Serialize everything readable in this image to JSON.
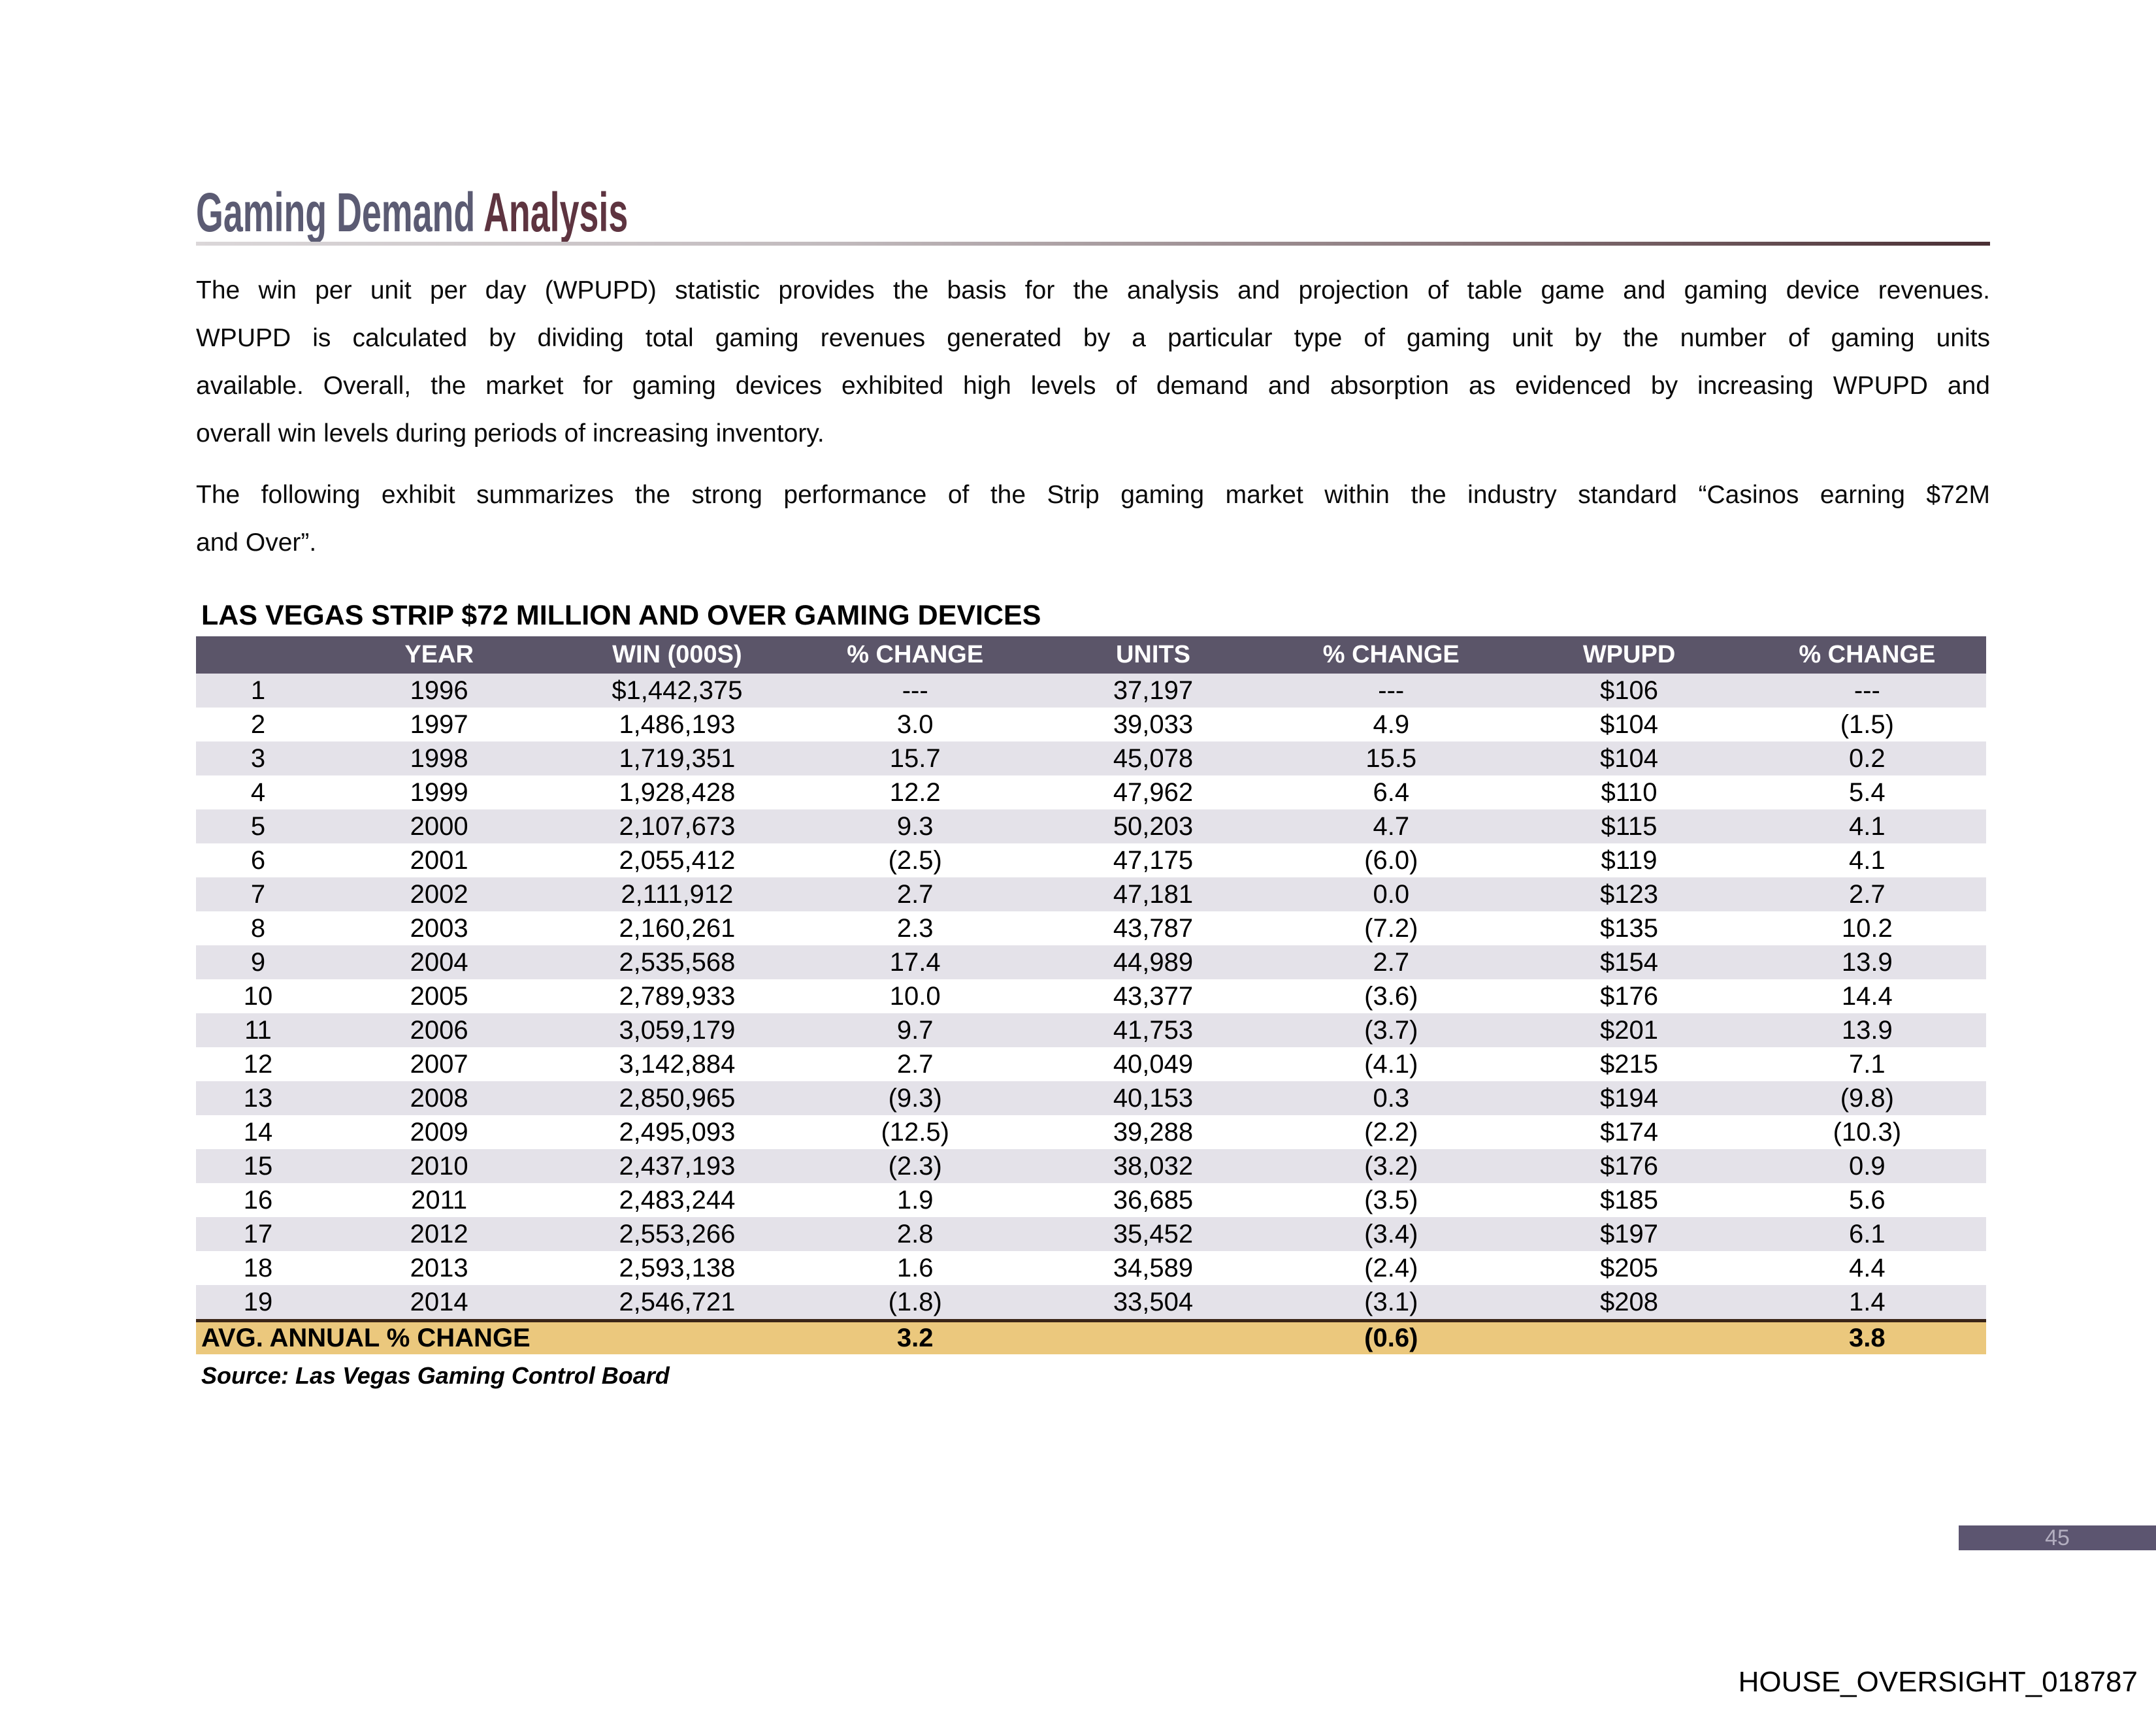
{
  "page": {
    "title": {
      "part1": "Gaming Demand ",
      "part2": "Analysis"
    },
    "paragraph1_lines": [
      "The win per unit per day (WPUPD) statistic provides the basis for the analysis and projection of table game and gaming device revenues.",
      "WPUPD is calculated by dividing total gaming revenues generated by a particular type of gaming unit by the number of gaming units",
      "available.  Overall, the  market for gaming devices exhibited high levels of demand and absorption as evidenced by increasing WPUPD and",
      "overall win levels during periods of increasing inventory."
    ],
    "paragraph2_lines": [
      "The following exhibit summarizes the strong performance of the Strip gaming market within the industry standard “Casinos earning $72M",
      "and Over”."
    ],
    "page_number": "45",
    "footer_id": "HOUSE_OVERSIGHT_018787"
  },
  "table": {
    "title": "LAS VEGAS STRIP $72 MILLION AND OVER GAMING DEVICES",
    "headers": [
      "",
      "YEAR",
      "WIN (000S)",
      "% CHANGE",
      "UNITS",
      "% CHANGE",
      "WPUPD",
      "% CHANGE"
    ],
    "rows": [
      [
        "1",
        "1996",
        "$1,442,375",
        "---",
        "37,197",
        "---",
        "$106",
        "---"
      ],
      [
        "2",
        "1997",
        "1,486,193",
        "3.0",
        "39,033",
        "4.9",
        "$104",
        "(1.5)"
      ],
      [
        "3",
        "1998",
        "1,719,351",
        "15.7",
        "45,078",
        "15.5",
        "$104",
        "0.2"
      ],
      [
        "4",
        "1999",
        "1,928,428",
        "12.2",
        "47,962",
        "6.4",
        "$110",
        "5.4"
      ],
      [
        "5",
        "2000",
        "2,107,673",
        "9.3",
        "50,203",
        "4.7",
        "$115",
        "4.1"
      ],
      [
        "6",
        "2001",
        "2,055,412",
        "(2.5)",
        "47,175",
        "(6.0)",
        "$119",
        "4.1"
      ],
      [
        "7",
        "2002",
        "2,111,912",
        "2.7",
        "47,181",
        "0.0",
        "$123",
        "2.7"
      ],
      [
        "8",
        "2003",
        "2,160,261",
        "2.3",
        "43,787",
        "(7.2)",
        "$135",
        "10.2"
      ],
      [
        "9",
        "2004",
        "2,535,568",
        "17.4",
        "44,989",
        "2.7",
        "$154",
        "13.9"
      ],
      [
        "10",
        "2005",
        "2,789,933",
        "10.0",
        "43,377",
        "(3.6)",
        "$176",
        "14.4"
      ],
      [
        "11",
        "2006",
        "3,059,179",
        "9.7",
        "41,753",
        "(3.7)",
        "$201",
        "13.9"
      ],
      [
        "12",
        "2007",
        "3,142,884",
        "2.7",
        "40,049",
        "(4.1)",
        "$215",
        "7.1"
      ],
      [
        "13",
        "2008",
        "2,850,965",
        "(9.3)",
        "40,153",
        "0.3",
        "$194",
        "(9.8)"
      ],
      [
        "14",
        "2009",
        "2,495,093",
        "(12.5)",
        "39,288",
        "(2.2)",
        "$174",
        "(10.3)"
      ],
      [
        "15",
        "2010",
        "2,437,193",
        "(2.3)",
        "38,032",
        "(3.2)",
        "$176",
        "0.9"
      ],
      [
        "16",
        "2011",
        "2,483,244",
        "1.9",
        "36,685",
        "(3.5)",
        "$185",
        "5.6"
      ],
      [
        "17",
        "2012",
        "2,553,266",
        "2.8",
        "35,452",
        "(3.4)",
        "$197",
        "6.1"
      ],
      [
        "18",
        "2013",
        "2,593,138",
        "1.6",
        "34,589",
        "(2.4)",
        "$205",
        "4.4"
      ],
      [
        "19",
        "2014",
        "2,546,721",
        "(1.8)",
        "33,504",
        "(3.1)",
        "$208",
        "1.4"
      ]
    ],
    "footer": {
      "label": "AVG. ANNUAL % CHANGE",
      "win_change": "3.2",
      "units_change": "(0.6)",
      "wpupd_change": "3.8"
    },
    "source": "Source: Las Vegas Gaming Control Board"
  },
  "colors": {
    "header_bg": "#5B5569",
    "row_alt": "#E4E2E9",
    "avg_bg": "#EBC87D",
    "avg_border": "#3A2517",
    "title_part1": "#5B5B73",
    "title_part2": "#5E3440",
    "bar_bg": "#5C5570",
    "bar_text": "#B3AEC0"
  }
}
